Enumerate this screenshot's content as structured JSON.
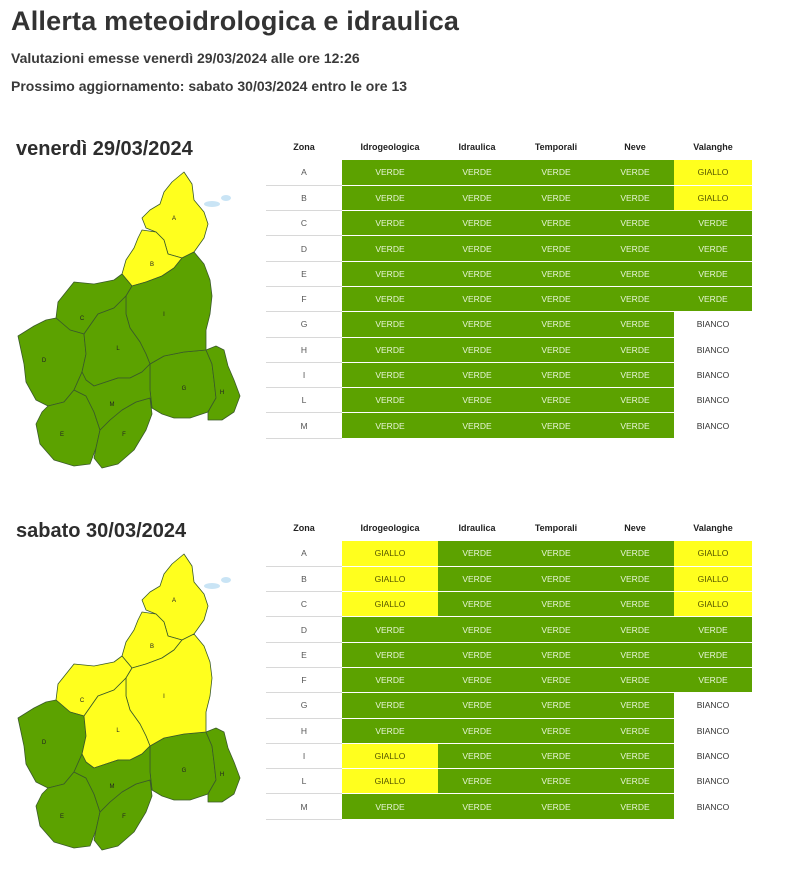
{
  "header": {
    "title": "Allerta meteoidrologica e idraulica",
    "issued": "Valutazioni emesse venerdì 29/03/2024 alle ore 12:26",
    "next_update": "Prossimo aggiornamento: sabato 30/03/2024 entro le ore 13"
  },
  "colors": {
    "verde": "#5ca200",
    "giallo": "#ffff1e",
    "bianco": "#ffffff"
  },
  "columns": [
    "Zona",
    "Idrogeologica",
    "Idraulica",
    "Temporali",
    "Neve",
    "Valanghe"
  ],
  "days": [
    {
      "label": "venerdì 29/03/2024",
      "rows": [
        [
          "A",
          "VERDE",
          "VERDE",
          "VERDE",
          "VERDE",
          "GIALLO"
        ],
        [
          "B",
          "VERDE",
          "VERDE",
          "VERDE",
          "VERDE",
          "GIALLO"
        ],
        [
          "C",
          "VERDE",
          "VERDE",
          "VERDE",
          "VERDE",
          "VERDE"
        ],
        [
          "D",
          "VERDE",
          "VERDE",
          "VERDE",
          "VERDE",
          "VERDE"
        ],
        [
          "E",
          "VERDE",
          "VERDE",
          "VERDE",
          "VERDE",
          "VERDE"
        ],
        [
          "F",
          "VERDE",
          "VERDE",
          "VERDE",
          "VERDE",
          "VERDE"
        ],
        [
          "G",
          "VERDE",
          "VERDE",
          "VERDE",
          "VERDE",
          "BIANCO"
        ],
        [
          "H",
          "VERDE",
          "VERDE",
          "VERDE",
          "VERDE",
          "BIANCO"
        ],
        [
          "I",
          "VERDE",
          "VERDE",
          "VERDE",
          "VERDE",
          "BIANCO"
        ],
        [
          "L",
          "VERDE",
          "VERDE",
          "VERDE",
          "VERDE",
          "BIANCO"
        ],
        [
          "M",
          "VERDE",
          "VERDE",
          "VERDE",
          "VERDE",
          "BIANCO"
        ]
      ],
      "map": {
        "A": "GIALLO",
        "B": "GIALLO",
        "C": "VERDE",
        "D": "VERDE",
        "E": "VERDE",
        "F": "VERDE",
        "G": "VERDE",
        "H": "VERDE",
        "I": "VERDE",
        "L": "VERDE",
        "M": "VERDE"
      }
    },
    {
      "label": "sabato 30/03/2024",
      "rows": [
        [
          "A",
          "GIALLO",
          "VERDE",
          "VERDE",
          "VERDE",
          "GIALLO"
        ],
        [
          "B",
          "GIALLO",
          "VERDE",
          "VERDE",
          "VERDE",
          "GIALLO"
        ],
        [
          "C",
          "GIALLO",
          "VERDE",
          "VERDE",
          "VERDE",
          "GIALLO"
        ],
        [
          "D",
          "VERDE",
          "VERDE",
          "VERDE",
          "VERDE",
          "VERDE"
        ],
        [
          "E",
          "VERDE",
          "VERDE",
          "VERDE",
          "VERDE",
          "VERDE"
        ],
        [
          "F",
          "VERDE",
          "VERDE",
          "VERDE",
          "VERDE",
          "VERDE"
        ],
        [
          "G",
          "VERDE",
          "VERDE",
          "VERDE",
          "VERDE",
          "BIANCO"
        ],
        [
          "H",
          "VERDE",
          "VERDE",
          "VERDE",
          "VERDE",
          "BIANCO"
        ],
        [
          "I",
          "GIALLO",
          "VERDE",
          "VERDE",
          "VERDE",
          "BIANCO"
        ],
        [
          "L",
          "GIALLO",
          "VERDE",
          "VERDE",
          "VERDE",
          "BIANCO"
        ],
        [
          "M",
          "VERDE",
          "VERDE",
          "VERDE",
          "VERDE",
          "BIANCO"
        ]
      ],
      "map": {
        "A": "GIALLO",
        "B": "GIALLO",
        "C": "GIALLO",
        "D": "VERDE",
        "E": "VERDE",
        "F": "VERDE",
        "G": "VERDE",
        "H": "VERDE",
        "I": "GIALLO",
        "L": "GIALLO",
        "M": "VERDE"
      }
    }
  ]
}
